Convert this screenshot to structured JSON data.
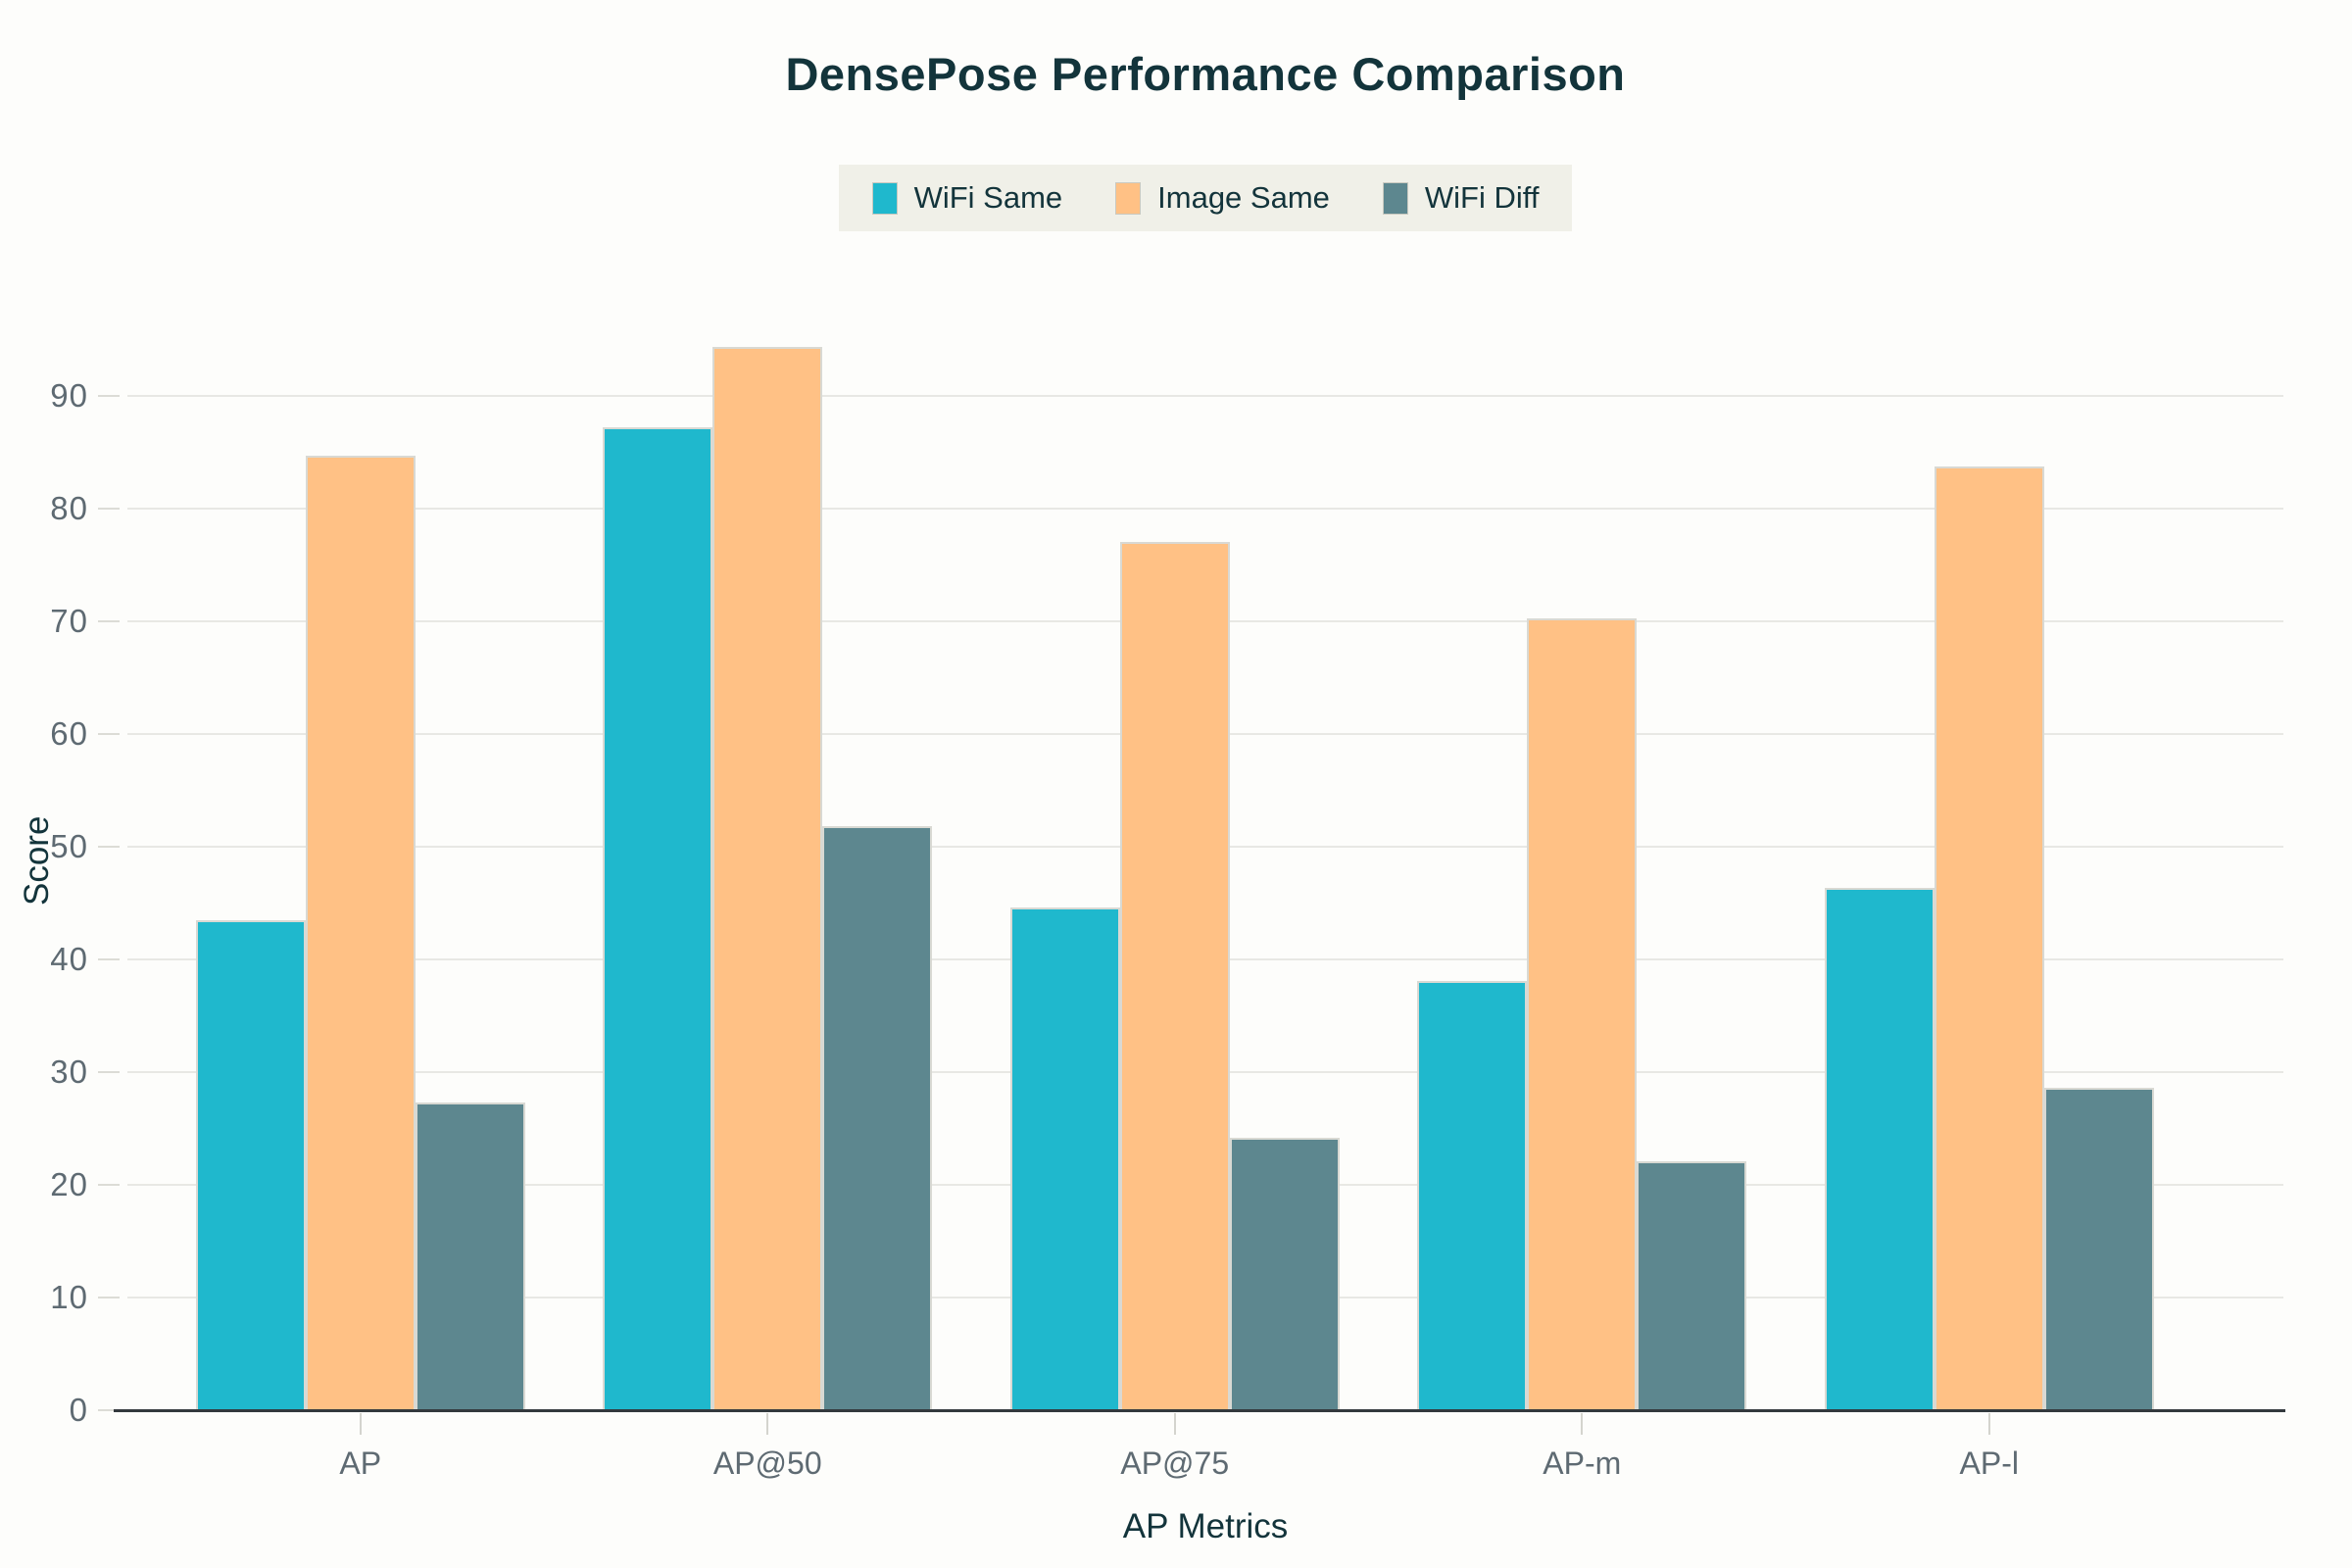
{
  "chart_data": {
    "type": "bar",
    "title": "DensePose Performance Comparison",
    "xlabel": "AP Metrics",
    "ylabel": "Score",
    "categories": [
      "AP",
      "AP@50",
      "AP@75",
      "AP-m",
      "AP-l"
    ],
    "series": [
      {
        "name": "WiFi Same",
        "color": "#1FB8CD",
        "values": [
          43.5,
          87.2,
          44.6,
          38.1,
          46.4
        ]
      },
      {
        "name": "Image Same",
        "color": "#FFC185",
        "values": [
          84.7,
          94.4,
          77.1,
          70.3,
          83.8
        ]
      },
      {
        "name": "WiFi Diff",
        "color": "#5D878F",
        "values": [
          27.3,
          51.8,
          24.2,
          22.1,
          28.6
        ]
      }
    ],
    "y_ticks": [
      0,
      10,
      20,
      30,
      40,
      50,
      60,
      70,
      80,
      90
    ],
    "ylim": [
      0,
      97.5
    ],
    "grid": true,
    "legend_position": "top-center"
  },
  "colors": {
    "background": "#FDFDFB",
    "title_text": "#13343B",
    "axis_title_text": "#13343B",
    "tick_text": "#5E6A72",
    "gridline": "#E8E8E4",
    "baseline": "#33393D",
    "legend_background": "#F0F0E8",
    "bar_border": "#D9D9D3"
  }
}
